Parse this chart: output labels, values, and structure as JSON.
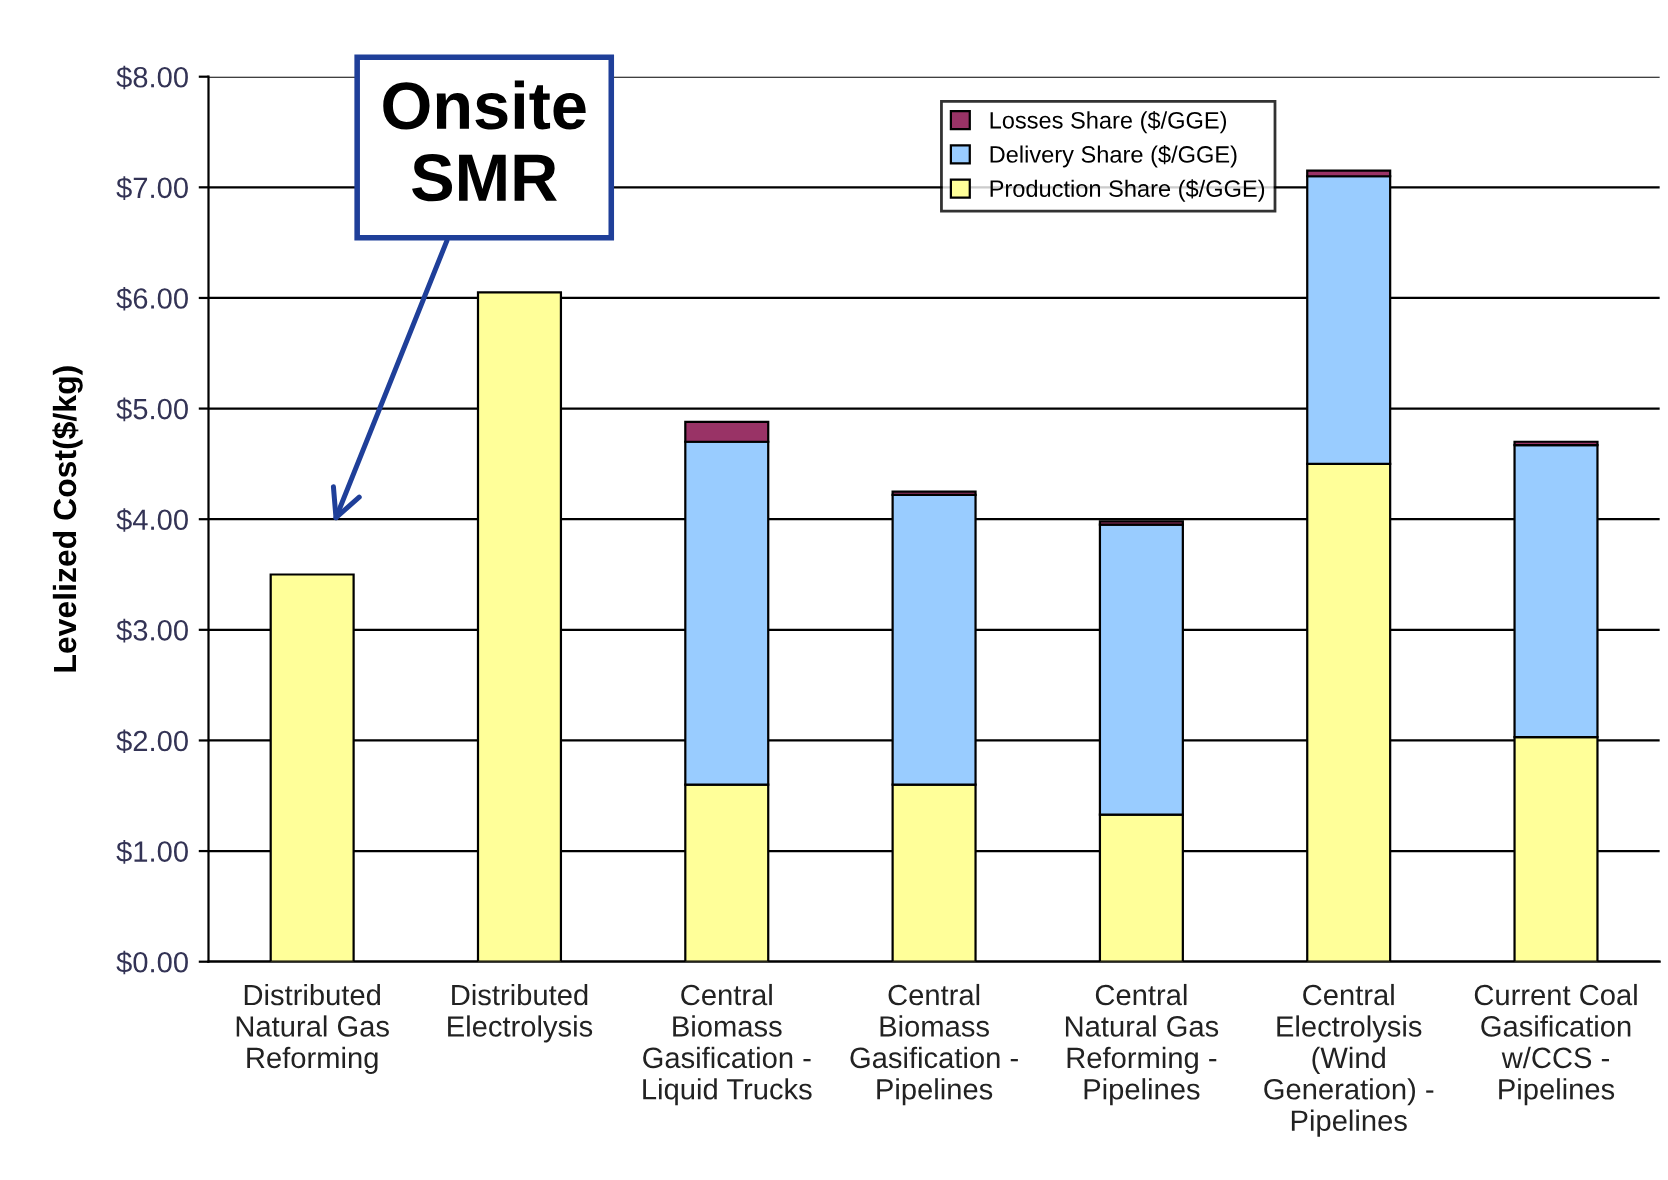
{
  "chart_data": {
    "type": "bar",
    "stacked": true,
    "ylabel": "Levelized Cost($/kg)",
    "categories": [
      "Distributed\nNatural Gas\nReforming",
      "Distributed\nElectrolysis",
      "Central\nBiomass\nGasification -\nLiquid Trucks",
      "Central\nBiomass\nGasification -\nPipelines",
      "Central\nNatural Gas\nReforming -\nPipelines",
      "Central\nElectrolysis\n(Wind\nGeneration) -\nPipelines",
      "Current Coal\nGasification\nw/CCS -\nPipelines"
    ],
    "series": [
      {
        "name": "Production Share ($/GGE)",
        "color": "#ffff99",
        "values": [
          3.5,
          6.05,
          1.6,
          1.6,
          1.33,
          4.5,
          2.03
        ]
      },
      {
        "name": "Delivery Share ($/GGE)",
        "color": "#99ccff",
        "values": [
          null,
          null,
          3.1,
          2.62,
          2.62,
          2.6,
          2.64
        ]
      },
      {
        "name": "Losses Share ($/GGE)",
        "color": "#993366",
        "values": [
          null,
          null,
          0.18,
          0.03,
          0.03,
          0.05,
          0.03
        ]
      }
    ],
    "ylim": [
      0,
      8
    ],
    "yticks": [
      {
        "value": 0,
        "label": "$0.00"
      },
      {
        "value": 1,
        "label": "$1.00"
      },
      {
        "value": 2,
        "label": "$2.00"
      },
      {
        "value": 3,
        "label": "$3.00"
      },
      {
        "value": 4,
        "label": "$4.00"
      },
      {
        "value": 5,
        "label": "$5.00"
      },
      {
        "value": 6,
        "label": "$6.00"
      },
      {
        "value": 7,
        "label": "$7.00"
      },
      {
        "value": 8,
        "label": "$8.00"
      }
    ],
    "grid": "y",
    "legend": "top",
    "annotations": [
      "Onsite\nSMR"
    ]
  }
}
